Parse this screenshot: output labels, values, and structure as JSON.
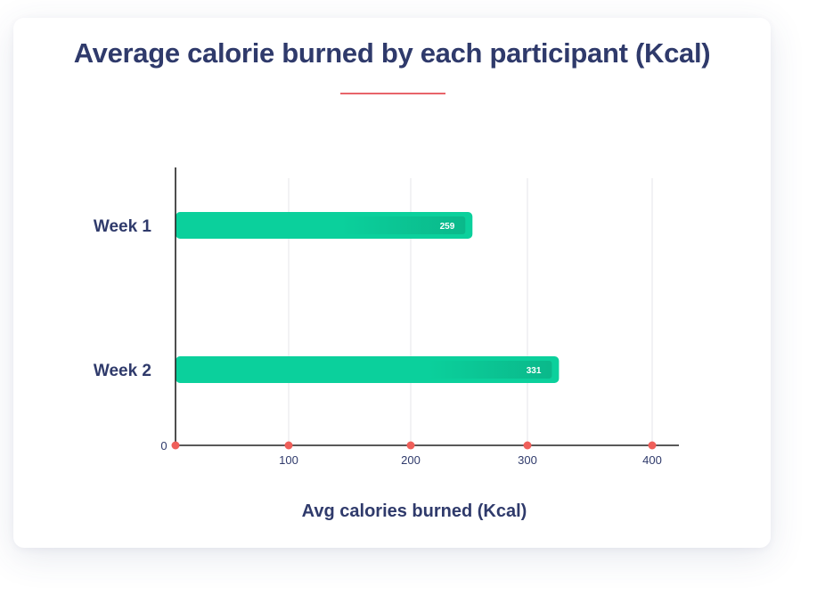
{
  "colors": {
    "title": "#2f3a6b",
    "accent": "#e8646a",
    "bar": "#0bd09c",
    "bar_shade": "#0aa57c",
    "grid": "#e6e6ea",
    "axis": "#222222",
    "tick_dot": "#ef5f5a"
  },
  "chart_data": {
    "type": "bar",
    "orientation": "horizontal",
    "title": "Average calorie burned by each participant (Kcal)",
    "categories": [
      "Week 1",
      "Week 2"
    ],
    "values": [
      259,
      331
    ],
    "data_labels": [
      "259",
      "331"
    ],
    "xlabel": "Avg calories burned (Kcal)",
    "ylabel": "",
    "xlim": [
      0,
      420
    ],
    "xticks": [
      0,
      100,
      200,
      300,
      400
    ],
    "xtick_labels": [
      "0",
      "100",
      "200",
      "300",
      "400"
    ],
    "grid": true
  }
}
